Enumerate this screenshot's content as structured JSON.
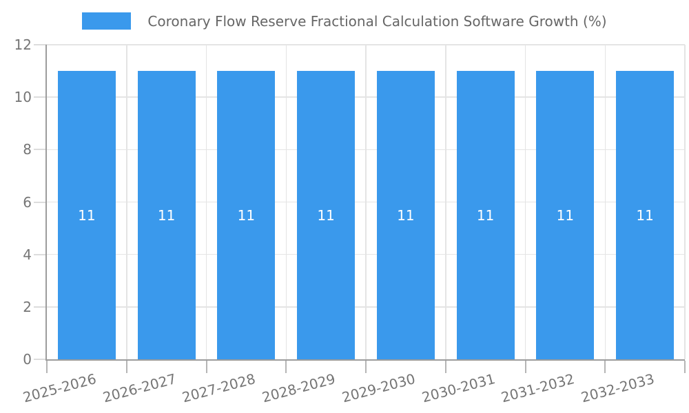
{
  "chart_data": {
    "type": "bar",
    "title": "Coronary Flow Reserve Fractional Calculation Software Growth (%)",
    "categories": [
      "2025-2026",
      "2026-2027",
      "2027-2028",
      "2028-2029",
      "2029-2030",
      "2030-2031",
      "2031-2032",
      "2032-2033"
    ],
    "values": [
      11,
      11,
      11,
      11,
      11,
      11,
      11,
      11
    ],
    "bar_value_labels": [
      "11",
      "11",
      "11",
      "11",
      "11",
      "11",
      "11",
      "11"
    ],
    "xlabel": "",
    "ylabel": "",
    "ylim": [
      0,
      12
    ],
    "yticks": [
      0,
      2,
      4,
      6,
      8,
      10,
      12
    ],
    "grid": true,
    "legend_position": "top",
    "x_label_rotation_deg": -15,
    "colors": {
      "bar": "#3A99EC",
      "bar_label": "#FFFFFF",
      "legend_text": "#666666",
      "tick_text": "#757575",
      "grid": "#E4E4E4",
      "y_tick_mark": "#DCDCDC",
      "x_tick_mark": "#B5B5B5",
      "axis": "#9C9C9C",
      "background": "#FFFFFF"
    }
  }
}
